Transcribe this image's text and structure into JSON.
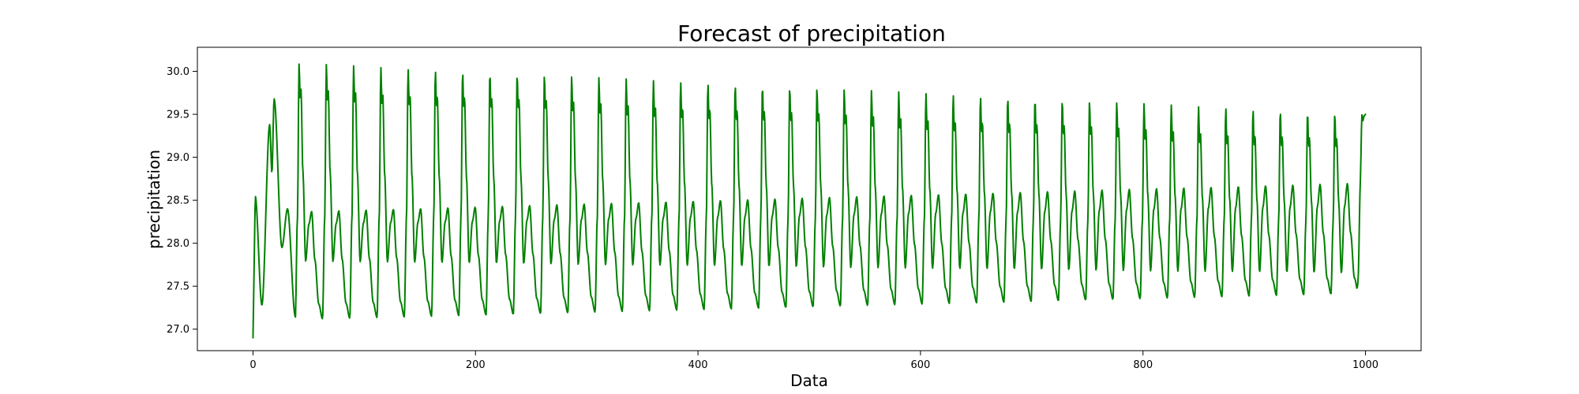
{
  "chart_data": {
    "type": "line",
    "title": "Forecast of precipitation",
    "xlabel": "Data",
    "ylabel": "precipitation",
    "xlim": [
      -50,
      1050
    ],
    "ylim": [
      26.75,
      30.28
    ],
    "xticks": [
      0,
      200,
      400,
      600,
      800,
      1000
    ],
    "yticks": [
      27.0,
      27.5,
      28.0,
      28.5,
      29.0,
      29.5,
      30.0
    ],
    "x_range": [
      0,
      1000
    ],
    "period_approx": 24.5,
    "series": [
      {
        "color": "#008000",
        "start_value": 26.9,
        "end_value": 29.5,
        "peak_max_start": 30.12,
        "peak_max_end": 29.5,
        "secondary_peak_start": 28.35,
        "secondary_peak_end": 28.7,
        "trough_min_start": 27.1,
        "trough_min_end": 27.42,
        "mid_trough_start": 27.8,
        "mid_trough_end": 27.65
      }
    ],
    "grid": false,
    "legend": "none"
  }
}
